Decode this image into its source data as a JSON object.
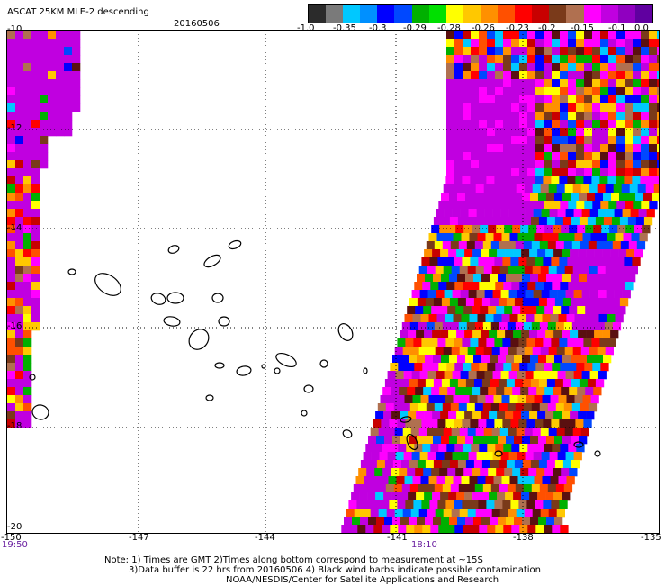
{
  "header": {
    "title": "ASCAT 25KM MLE-2 descending",
    "date": "20160506"
  },
  "colorbar": {
    "colors": [
      "#2b2b2b",
      "#7a7a7a",
      "#00c8ff",
      "#0090ff",
      "#0000ff",
      "#0048ff",
      "#00b000",
      "#00e000",
      "#ffff00",
      "#ffc800",
      "#ff9000",
      "#ff5000",
      "#ff0000",
      "#c80000",
      "#7a3a1a",
      "#b07050",
      "#ff00ff",
      "#c000e0",
      "#9000c0",
      "#6000a0"
    ],
    "labels": [
      "-1.0",
      "-0.35",
      "-0.3",
      "-0.29",
      "-0.28",
      "-0.26",
      "-0.23",
      "-0.2",
      "-0.15",
      "-0.1",
      "0.0"
    ]
  },
  "map": {
    "lat_labels": [
      "-10",
      "-12",
      "-14",
      "-16",
      "-18",
      "-20"
    ],
    "lon_labels": [
      "-150",
      "-147",
      "-144",
      "-141",
      "-138",
      "-135"
    ],
    "time_labels": [
      "19:50",
      "18:10"
    ]
  },
  "note": {
    "line1": "Note: 1) Times are GMT 2)Times along bottom correspond to measurement at ~15S",
    "line2": "3)Data buffer is 22 hrs from 20160506 4) Black wind barbs indicate possible contamination",
    "line3": "NOAA/NESDIS/Center for Satellite Applications and Research"
  }
}
